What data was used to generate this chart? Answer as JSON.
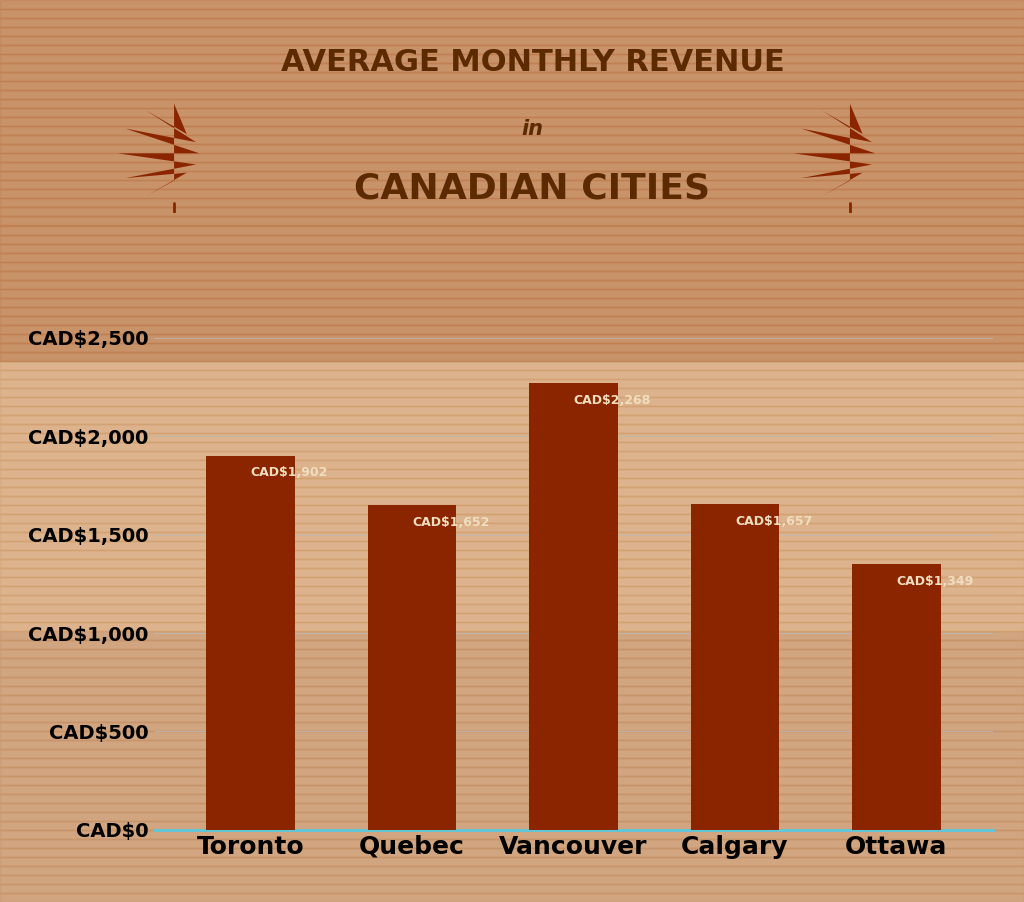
{
  "categories": [
    "Toronto",
    "Quebec",
    "Vancouver",
    "Calgary",
    "Ottawa"
  ],
  "values": [
    1902,
    1652,
    2268,
    1657,
    1349
  ],
  "bar_color": "#8B2500",
  "label_color": "#F0DEC0",
  "title_line1": "AVERAGE MONTHLY REVENUE",
  "title_line2": "in",
  "title_line3": "CANADIAN CITIES",
  "title_color": "#5C2A00",
  "axis_label_color": "#000000",
  "bg_color_top": "#D4956A",
  "bg_color_bottom": "#C8804A",
  "bg_overlay": "#E8C0A050",
  "ytick_labels": [
    "CAD$0",
    "CAD$500",
    "CAD$1,000",
    "CAD$1,500",
    "CAD$2,000",
    "CAD$2,500"
  ],
  "yticks": [
    0,
    500,
    1000,
    1500,
    2000,
    2500
  ],
  "ylim": [
    0,
    2750
  ],
  "grid_color": "#bbbbbb",
  "spine_color": "#5BC8DC",
  "value_label_fontsize": 9,
  "tick_fontsize": 14,
  "xlabel_fontsize": 18,
  "title_fontsize1": 22,
  "title_fontsize2": 15,
  "title_fontsize3": 26,
  "leaf_color": "#8B2500",
  "bar_width": 0.55
}
